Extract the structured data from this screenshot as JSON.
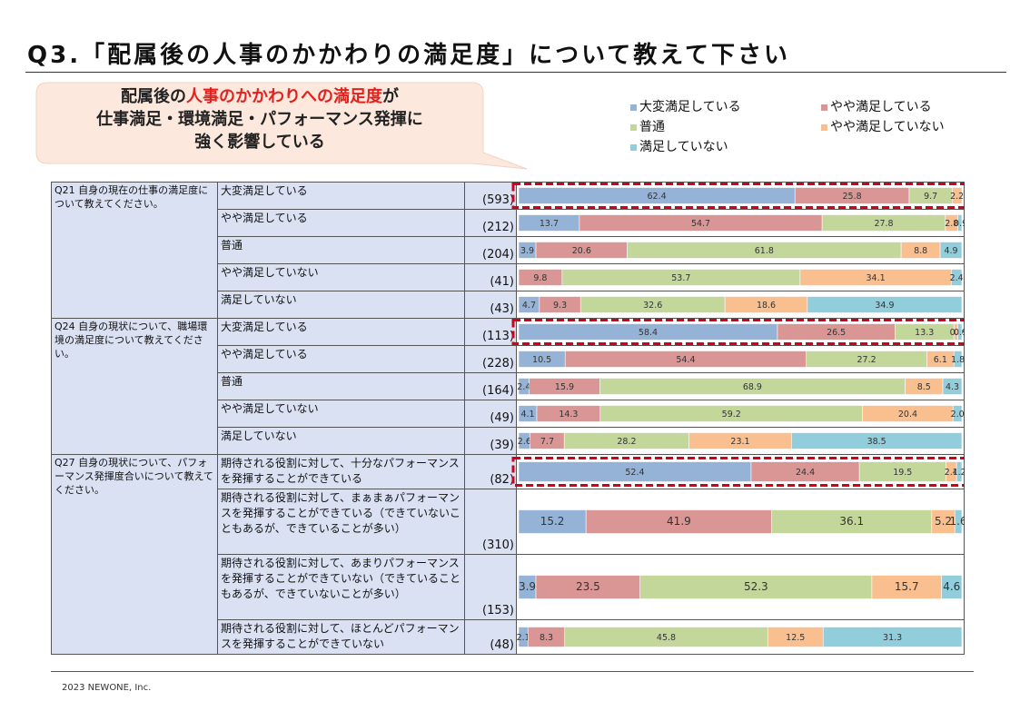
{
  "title": "Q3.「配属後の人事のかかわりの満足度」について教えて下さい",
  "callout": {
    "line1_pre": "配属後の",
    "line1_highlight": "人事のかかわりへの満足度",
    "line1_post": "が",
    "line2": "仕事満足・環境満足・パフォーマンス発揮に",
    "line3": "強く影響している"
  },
  "colors": {
    "s1": "#95b3d7",
    "s2": "#da9694",
    "s3": "#c4d79b",
    "s4": "#fabf8f",
    "s5": "#92cddc",
    "highlight": "#d0021b",
    "callout_fill": "#fce8dd"
  },
  "footer": "2023 NEWONE, Inc.",
  "chart_data": {
    "type": "bar",
    "orientation": "horizontal-stacked-100",
    "title": "Q3.「配属後の人事のかかわりの満足度」について教えて下さい",
    "series": [
      "大変満足している",
      "やや満足している",
      "普通",
      "やや満足していない",
      "満足していない"
    ],
    "groups": [
      {
        "question": "Q21 自身の現在の仕事の満足度について教えてください。",
        "rows": [
          {
            "label": "大変満足している",
            "n": "(593)",
            "values": [
              62.4,
              25.8,
              9.7,
              2.2,
              0.0
            ],
            "labels": [
              "62.4",
              "25.8",
              "9.7",
              "2.2",
              ""
            ],
            "highlight": true
          },
          {
            "label": "やや満足している",
            "n": "(212)",
            "values": [
              13.7,
              54.7,
              27.8,
              2.8,
              0.9
            ],
            "labels": [
              "13.7",
              "54.7",
              "27.8",
              "2.8",
              "0.9"
            ]
          },
          {
            "label": "普通",
            "n": "(204)",
            "values": [
              3.9,
              20.6,
              61.8,
              8.8,
              4.9
            ],
            "labels": [
              "3.9",
              "20.6",
              "61.8",
              "8.8",
              "4.9"
            ]
          },
          {
            "label": "やや満足していない",
            "n": "(41)",
            "values": [
              0,
              9.8,
              53.7,
              34.1,
              2.4
            ],
            "labels": [
              "",
              "9.8",
              "53.7",
              "34.1",
              "2.4"
            ]
          },
          {
            "label": "満足していない",
            "n": "(43)",
            "values": [
              4.7,
              9.3,
              32.6,
              18.6,
              34.9
            ],
            "labels": [
              "4.7",
              "9.3",
              "32.6",
              "18.6",
              "34.9"
            ]
          }
        ]
      },
      {
        "question": "Q24 自身の現状について、職場環境の満足度について教えてください。",
        "rows": [
          {
            "label": "大変満足している",
            "n": "(113)",
            "values": [
              58.4,
              26.5,
              13.3,
              0.9,
              0.9
            ],
            "labels": [
              "58.4",
              "26.5",
              "13.3",
              "0.9",
              "0.9"
            ],
            "highlight": true
          },
          {
            "label": "やや満足している",
            "n": "(228)",
            "values": [
              10.5,
              54.4,
              27.2,
              6.1,
              1.8
            ],
            "labels": [
              "10.5",
              "54.4",
              "27.2",
              "6.1",
              "1.8"
            ]
          },
          {
            "label": "普通",
            "n": "(164)",
            "values": [
              2.4,
              15.9,
              68.9,
              8.5,
              4.3
            ],
            "labels": [
              "2.4",
              "15.9",
              "68.9",
              "8.5",
              "4.3"
            ]
          },
          {
            "label": "やや満足していない",
            "n": "(49)",
            "values": [
              4.1,
              14.3,
              59.2,
              20.4,
              2.0
            ],
            "labels": [
              "4.1",
              "14.3",
              "59.2",
              "20.4",
              "2.0"
            ]
          },
          {
            "label": "満足していない",
            "n": "(39)",
            "values": [
              2.6,
              7.7,
              28.2,
              23.1,
              38.5
            ],
            "labels": [
              "2.6",
              "7.7",
              "28.2",
              "23.1",
              "38.5"
            ]
          }
        ]
      },
      {
        "question": "Q27 自身の現状について、パフォーマンス発揮度合いについて教えてください。",
        "rows": [
          {
            "label": "期待される役割に対して、十分なパフォーマンスを発揮することができている",
            "n": "(82)",
            "values": [
              52.4,
              24.4,
              19.5,
              2.4,
              1.2
            ],
            "labels": [
              "52.4",
              "24.4",
              "19.5",
              "2.4",
              "1.2"
            ],
            "highlight": true
          },
          {
            "label": "期待される役割に対して、まぁまぁパフォーマンスを発揮することができている（できていないこともあるが、できていることが多い）",
            "n": "(310)",
            "values": [
              15.2,
              41.9,
              36.1,
              5.2,
              1.6
            ],
            "labels": [
              "15.2",
              "41.9",
              "36.1",
              "5.2",
              "1.6"
            ]
          },
          {
            "label": "期待される役割に対して、あまりパフォーマンスを発揮することができていない（できていることもあるが、できていないことが多い）",
            "n": "(153)",
            "values": [
              3.9,
              23.5,
              52.3,
              15.7,
              4.6
            ],
            "labels": [
              "3.9",
              "23.5",
              "52.3",
              "15.7",
              "4.6"
            ]
          },
          {
            "label": "期待される役割に対して、ほとんどパフォーマンスを発揮することができていない",
            "n": "(48)",
            "values": [
              2.1,
              8.3,
              45.8,
              12.5,
              31.3
            ],
            "labels": [
              "2.1",
              "8.3",
              "45.8",
              "12.5",
              "31.3"
            ]
          }
        ]
      }
    ]
  }
}
